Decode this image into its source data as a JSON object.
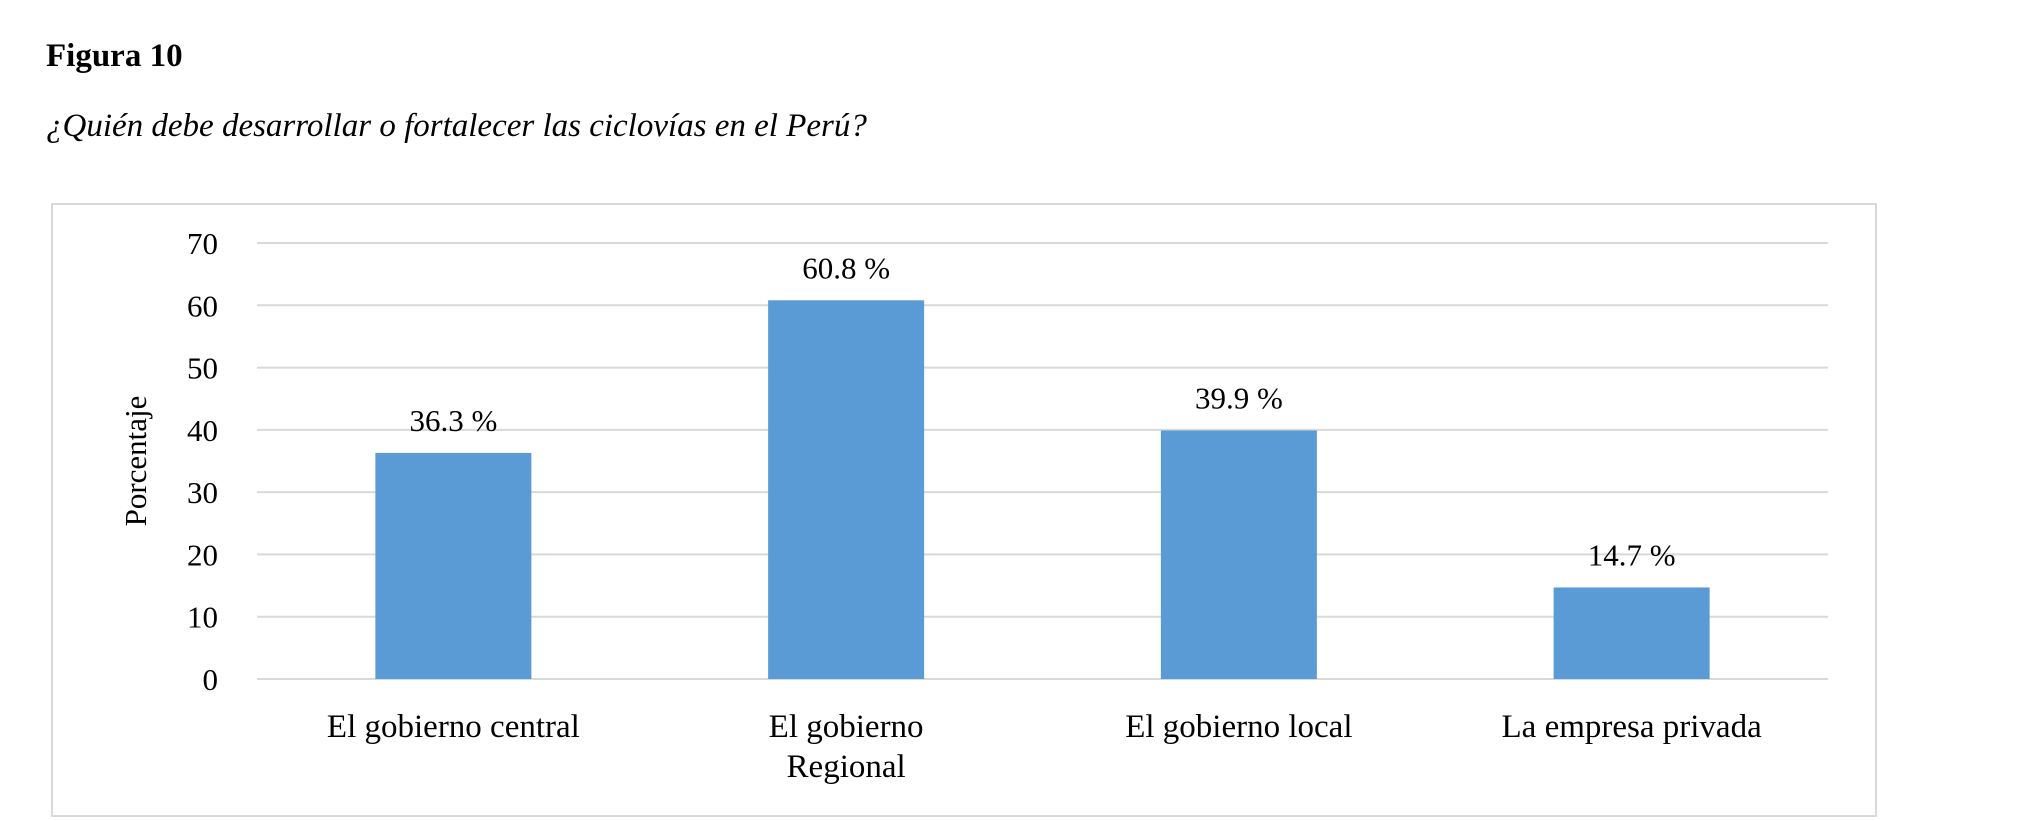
{
  "figure_label": "Figura 10",
  "figure_title": "¿Quién debe desarrollar o fortalecer las ciclovías en el Perú?",
  "chart_data": {
    "type": "bar",
    "categories": [
      "El gobierno central",
      "El gobierno Regional",
      "El gobierno local",
      "La empresa privada"
    ],
    "category_lines": [
      [
        "El gobierno central"
      ],
      [
        "El gobierno",
        "Regional"
      ],
      [
        "El gobierno local"
      ],
      [
        "La empresa privada"
      ]
    ],
    "values": [
      36.3,
      60.8,
      39.9,
      14.7
    ],
    "data_labels": [
      "36.3 %",
      "60.8 %",
      "39.9 %",
      "14.7 %"
    ],
    "title": "",
    "xlabel": "",
    "ylabel": "Porcentaje",
    "ylim": [
      0,
      70
    ],
    "yticks": [
      0,
      10,
      20,
      30,
      40,
      50,
      60,
      70
    ],
    "grid": true,
    "legend": "none",
    "bar_color": "#5B9BD5",
    "grid_color": "#D9D9D9"
  }
}
